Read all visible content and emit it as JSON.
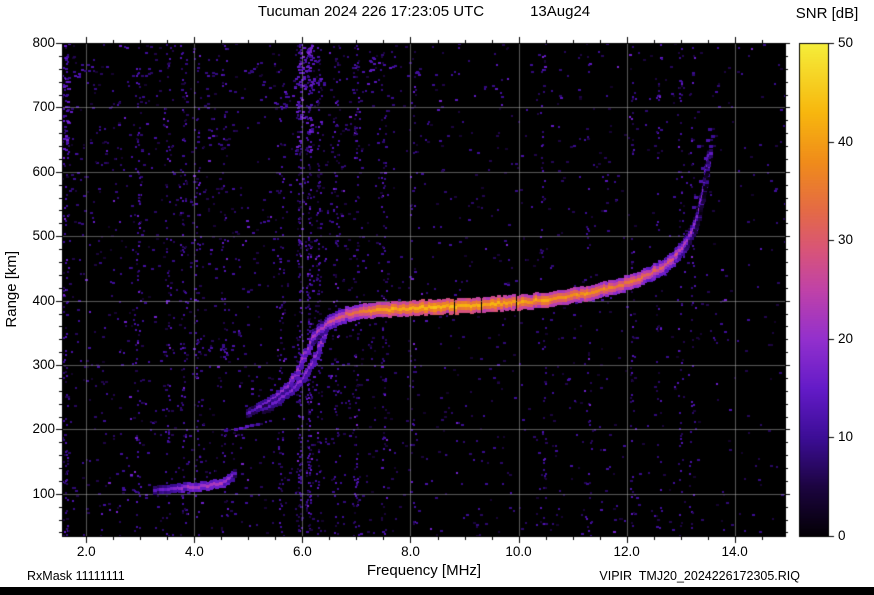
{
  "header": {
    "title": "Tucuman 2024 226 17:23:05 UTC",
    "date": "13Aug24"
  },
  "colorbar": {
    "title": "SNR [dB]",
    "ticks": [
      0,
      10,
      20,
      30,
      40,
      50
    ],
    "min": 0,
    "max": 50
  },
  "axes": {
    "x_label": "Frequency [MHz]",
    "y_label": "Range [km]",
    "x_ticks": [
      {
        "v": 2,
        "label": "2.0"
      },
      {
        "v": 4,
        "label": "4.0"
      },
      {
        "v": 6,
        "label": "6.0"
      },
      {
        "v": 8,
        "label": "8.0"
      },
      {
        "v": 10,
        "label": "10.0"
      },
      {
        "v": 12,
        "label": "12.0"
      },
      {
        "v": 14,
        "label": "14.0"
      }
    ],
    "y_ticks": [
      100,
      200,
      300,
      400,
      500,
      600,
      700,
      800
    ]
  },
  "footer": {
    "left": "RxMask 11111111",
    "right": "VIPIR  TMJ20_2024226172305.RIQ"
  },
  "chart_data": {
    "type": "heatmap",
    "title": "Tucuman 2024 226 17:23:05 UTC 13Aug24",
    "xlabel": "Frequency [MHz]",
    "ylabel": "Range [km]",
    "zlabel": "SNR [dB]",
    "x_range": [
      1.55,
      14.95
    ],
    "y_range": [
      33,
      800
    ],
    "z_range": [
      0,
      50
    ],
    "grid": true,
    "background": "#000000",
    "colormap_stops": [
      [
        0.0,
        "#030005"
      ],
      [
        0.1,
        "#1c0440"
      ],
      [
        0.2,
        "#3c0d96"
      ],
      [
        0.3,
        "#641bc8"
      ],
      [
        0.4,
        "#9330cd"
      ],
      [
        0.5,
        "#c042a8"
      ],
      [
        0.58,
        "#d85479"
      ],
      [
        0.66,
        "#e46a46"
      ],
      [
        0.76,
        "#f08c1a"
      ],
      [
        0.86,
        "#f7b70e"
      ],
      [
        1.0,
        "#f5ee3a"
      ]
    ],
    "series": [
      {
        "name": "sporadic-E-layer",
        "style": "line",
        "thick": 1,
        "points": [
          [
            3.3,
            106,
            12
          ],
          [
            3.45,
            107,
            15
          ],
          [
            3.6,
            108,
            17
          ],
          [
            3.75,
            109,
            19
          ],
          [
            3.9,
            110,
            21
          ],
          [
            4.05,
            111,
            22
          ],
          [
            4.2,
            112,
            23
          ],
          [
            4.35,
            114,
            23
          ],
          [
            4.5,
            116,
            23
          ],
          [
            4.62,
            120,
            21
          ],
          [
            4.72,
            127,
            18
          ],
          [
            4.8,
            134,
            14
          ]
        ]
      },
      {
        "name": "Es-second-hop",
        "style": "dots",
        "points": [
          [
            4.6,
            198,
            10
          ],
          [
            4.78,
            200,
            13
          ],
          [
            4.88,
            202,
            15
          ],
          [
            4.98,
            204,
            14
          ],
          [
            5.08,
            206,
            12
          ],
          [
            5.18,
            208,
            11
          ]
        ]
      },
      {
        "name": "F-trace-O-branch",
        "style": "line",
        "thick": 1,
        "points": [
          [
            5.0,
            225,
            13
          ],
          [
            5.15,
            231,
            15
          ],
          [
            5.3,
            238,
            17
          ],
          [
            5.45,
            246,
            18
          ],
          [
            5.6,
            256,
            19
          ],
          [
            5.75,
            268,
            20
          ],
          [
            5.88,
            283,
            20
          ],
          [
            6.0,
            301,
            21
          ],
          [
            6.1,
            320,
            21
          ],
          [
            6.18,
            338,
            22
          ]
        ]
      },
      {
        "name": "F-trace-X-branch",
        "style": "line",
        "thick": 1,
        "points": [
          [
            5.3,
            230,
            12
          ],
          [
            5.45,
            237,
            14
          ],
          [
            5.6,
            245,
            16
          ],
          [
            5.75,
            255,
            17
          ],
          [
            5.9,
            267,
            18
          ],
          [
            6.05,
            282,
            19
          ],
          [
            6.18,
            300,
            20
          ],
          [
            6.3,
            320,
            20
          ],
          [
            6.4,
            340,
            21
          ],
          [
            6.48,
            356,
            21
          ]
        ]
      },
      {
        "name": "F-trace-main",
        "style": "line",
        "thick": 2,
        "points": [
          [
            6.2,
            340,
            22
          ],
          [
            6.35,
            355,
            24
          ],
          [
            6.5,
            365,
            27
          ],
          [
            6.65,
            372,
            29
          ],
          [
            6.8,
            377,
            31
          ],
          [
            7.0,
            381,
            34
          ],
          [
            7.2,
            384,
            37
          ],
          [
            7.5,
            386,
            40
          ],
          [
            8.0,
            388,
            42
          ],
          [
            8.5,
            390,
            43
          ],
          [
            9.0,
            392,
            43
          ],
          [
            9.5,
            394,
            42
          ],
          [
            10.0,
            397,
            41
          ],
          [
            10.5,
            401,
            40
          ],
          [
            11.0,
            407,
            39
          ],
          [
            11.4,
            413,
            38
          ],
          [
            11.8,
            421,
            36
          ],
          [
            12.1,
            429,
            35
          ],
          [
            12.4,
            439,
            33
          ],
          [
            12.6,
            448,
            31
          ],
          [
            12.8,
            459,
            29
          ],
          [
            12.95,
            471,
            27
          ],
          [
            13.08,
            484,
            25
          ],
          [
            13.18,
            498,
            23
          ],
          [
            13.27,
            514,
            21
          ],
          [
            13.34,
            532,
            19
          ],
          [
            13.4,
            552,
            18
          ],
          [
            13.45,
            573,
            17
          ],
          [
            13.49,
            594,
            16
          ],
          [
            13.52,
            614,
            15
          ],
          [
            13.55,
            634,
            14
          ]
        ]
      },
      {
        "name": "spread-F-echoes",
        "style": "dots",
        "points": [
          [
            13.25,
            545,
            11
          ],
          [
            13.3,
            560,
            12
          ],
          [
            13.38,
            585,
            12
          ],
          [
            13.42,
            605,
            11
          ],
          [
            13.47,
            620,
            13
          ],
          [
            13.52,
            648,
            12
          ],
          [
            13.58,
            640,
            11
          ],
          [
            13.6,
            655,
            10
          ],
          [
            13.35,
            640,
            10
          ],
          [
            13.55,
            665,
            10
          ]
        ]
      },
      {
        "name": "top-interference-patches",
        "style": "cluster",
        "points": [
          [
            5.6,
            702,
            11
          ],
          [
            5.75,
            722,
            12
          ],
          [
            5.9,
            742,
            12
          ],
          [
            6.05,
            760,
            13
          ],
          [
            6.2,
            776,
            11
          ],
          [
            5.95,
            735,
            14
          ],
          [
            6.3,
            742,
            12
          ],
          [
            7.2,
            758,
            14
          ],
          [
            7.35,
            772,
            13
          ],
          [
            7.6,
            765,
            12
          ],
          [
            8.05,
            752,
            11
          ],
          [
            5.0,
            760,
            10
          ],
          [
            4.3,
            748,
            10
          ],
          [
            2.0,
            762,
            10
          ],
          [
            1.8,
            750,
            11
          ],
          [
            3.1,
            755,
            9
          ]
        ]
      }
    ],
    "rfi_columns": [
      {
        "f": 1.62,
        "d": 0.5,
        "top": 1
      },
      {
        "f": 2.95,
        "d": 0.35
      },
      {
        "f": 3.5,
        "d": 0.3
      },
      {
        "f": 3.8,
        "d": 0.35
      },
      {
        "f": 4.05,
        "d": 0.3
      },
      {
        "f": 4.55,
        "d": 0.25
      },
      {
        "f": 5.6,
        "d": 0.3
      },
      {
        "f": 5.95,
        "d": 0.75,
        "top": 1
      },
      {
        "f": 6.12,
        "d": 0.85,
        "top": 1
      },
      {
        "f": 6.3,
        "d": 0.45
      },
      {
        "f": 6.62,
        "d": 0.4
      },
      {
        "f": 7.0,
        "d": 0.45
      },
      {
        "f": 7.5,
        "d": 0.3
      },
      {
        "f": 8.05,
        "d": 0.2
      },
      {
        "f": 10.45,
        "d": 0.22
      },
      {
        "f": 11.3,
        "d": 0.15
      },
      {
        "f": 12.1,
        "d": 0.2
      },
      {
        "f": 12.6,
        "d": 0.18
      },
      {
        "f": 13.0,
        "d": 0.3
      },
      {
        "f": 13.2,
        "d": 0.22
      }
    ],
    "noise": {
      "speckles": 2600,
      "left_bias": true
    }
  }
}
